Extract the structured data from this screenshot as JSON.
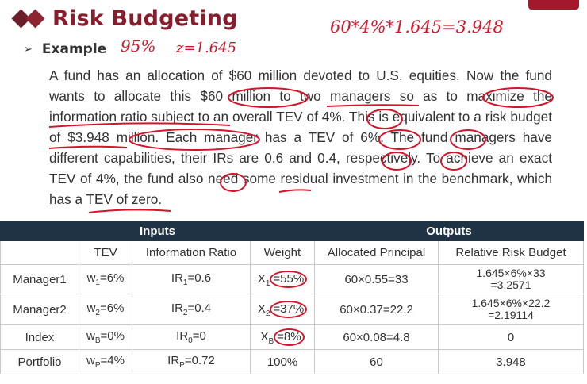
{
  "slide": {
    "title": "Risk Budgeting",
    "example_label": "Example",
    "annotations": {
      "confidence": "95%",
      "z_value": "z=1.645",
      "calculation": "60*4%*1.645=3.948"
    },
    "paragraph": "A fund has an allocation of $60 million devoted to U.S. equities. Now the fund wants to allocate this $60 million to two managers so as to maximize the information ratio subject to an overall TEV of 4%. This is equivalent to a risk budget of $3.948 million. Each manager has a TEV of 6%. The fund managers have different capabilities, their IRs are 0.6 and 0.4, respectively. To achieve an exact TEV of 4%, the fund also need some residual investment in the benchmark, which has a TEV of zero."
  },
  "table": {
    "group_headers": {
      "inputs": "Inputs",
      "outputs": "Outputs"
    },
    "columns": [
      "",
      "TEV",
      "Information Ratio",
      "Weight",
      "Allocated Principal",
      "Relative Risk Budget"
    ],
    "rows": [
      {
        "name": "Manager1",
        "tev": {
          "sym": "w",
          "sub": "1",
          "val": "=6%"
        },
        "ir": {
          "sym": "IR",
          "sub": "1",
          "val": "=0.6"
        },
        "weight": {
          "sym": "X",
          "sub": "1",
          "val": "=55%"
        },
        "principal": "60×0.55=33",
        "rrb_line1": "1.645×6%×33",
        "rrb_line2": "=3.2571"
      },
      {
        "name": "Manager2",
        "tev": {
          "sym": "w",
          "sub": "2",
          "val": "=6%"
        },
        "ir": {
          "sym": "IR",
          "sub": "2",
          "val": "=0.4"
        },
        "weight": {
          "sym": "X",
          "sub": "2",
          "val": "=37%"
        },
        "principal": "60×0.37=22.2",
        "rrb_line1": "1.645×6%×22.2",
        "rrb_line2": "=2.19114"
      },
      {
        "name": "Index",
        "tev": {
          "sym": "w",
          "sub": "B",
          "val": "=0%"
        },
        "ir": {
          "sym": "IR",
          "sub": "0",
          "val": "=0"
        },
        "weight": {
          "sym": "X",
          "sub": "B",
          "val": "=8%"
        },
        "principal": "60×0.08=4.8",
        "rrb_line1": "0",
        "rrb_line2": ""
      },
      {
        "name": "Portfolio",
        "tev": {
          "sym": "w",
          "sub": "P",
          "val": "=4%"
        },
        "ir": {
          "sym": "IR",
          "sub": "P",
          "val": "=0.72"
        },
        "weight_plain": "100%",
        "principal": "60",
        "rrb_line1": "3.948",
        "rrb_line2": ""
      }
    ]
  },
  "colors": {
    "title": "#8b1c2c",
    "header_bg": "#1f3345",
    "annotation": "#d3142a"
  }
}
